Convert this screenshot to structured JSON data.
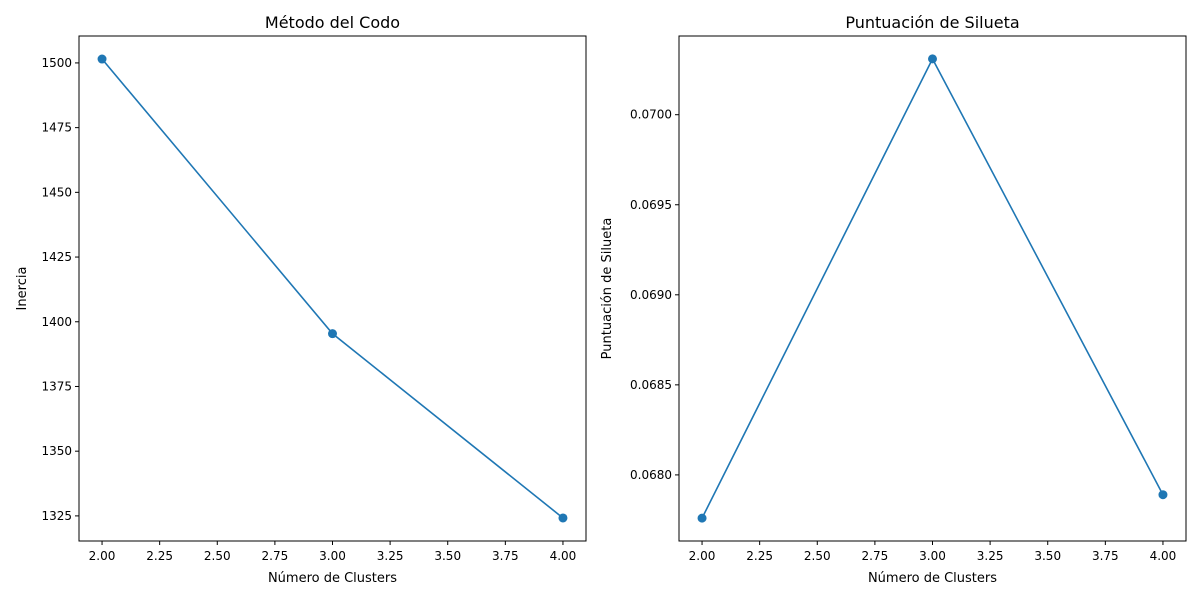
{
  "chart_data": [
    {
      "type": "line",
      "title": "Método del Codo",
      "xlabel": "Número de Clusters",
      "ylabel": "Inercia",
      "x": [
        2,
        3,
        4
      ],
      "series": [
        {
          "values": [
            1501.5,
            1395.4,
            1324.2
          ],
          "color": "#1f77b4",
          "marker": "circle"
        }
      ],
      "xlim": [
        1.9,
        4.1
      ],
      "ylim": [
        1315.3,
        1510.4
      ],
      "xticks": [
        2.0,
        2.25,
        2.5,
        2.75,
        3.0,
        3.25,
        3.5,
        3.75,
        4.0
      ],
      "xtick_labels": [
        "2.00",
        "2.25",
        "2.50",
        "2.75",
        "3.00",
        "3.25",
        "3.50",
        "3.75",
        "4.00"
      ],
      "yticks": [
        1325,
        1350,
        1375,
        1400,
        1425,
        1450,
        1475,
        1500
      ],
      "ytick_labels": [
        "1325",
        "1350",
        "1375",
        "1400",
        "1425",
        "1450",
        "1475",
        "1500"
      ],
      "grid": false,
      "legend": "none"
    },
    {
      "type": "line",
      "title": "Puntuación de Silueta",
      "xlabel": "Número de Clusters",
      "ylabel": "Puntuación de Silueta",
      "x": [
        2,
        3,
        4
      ],
      "series": [
        {
          "values": [
            0.06776,
            0.07031,
            0.06789
          ],
          "color": "#1f77b4",
          "marker": "circle"
        }
      ],
      "xlim": [
        1.9,
        4.1
      ],
      "ylim": [
        0.067633,
        0.070437
      ],
      "xticks": [
        2.0,
        2.25,
        2.5,
        2.75,
        3.0,
        3.25,
        3.5,
        3.75,
        4.0
      ],
      "xtick_labels": [
        "2.00",
        "2.25",
        "2.50",
        "2.75",
        "3.00",
        "3.25",
        "3.50",
        "3.75",
        "4.00"
      ],
      "yticks": [
        0.068,
        0.0685,
        0.069,
        0.0695,
        0.07
      ],
      "ytick_labels": [
        "0.0680",
        "0.0685",
        "0.0690",
        "0.0695",
        "0.0700"
      ],
      "grid": false,
      "legend": "none"
    }
  ]
}
